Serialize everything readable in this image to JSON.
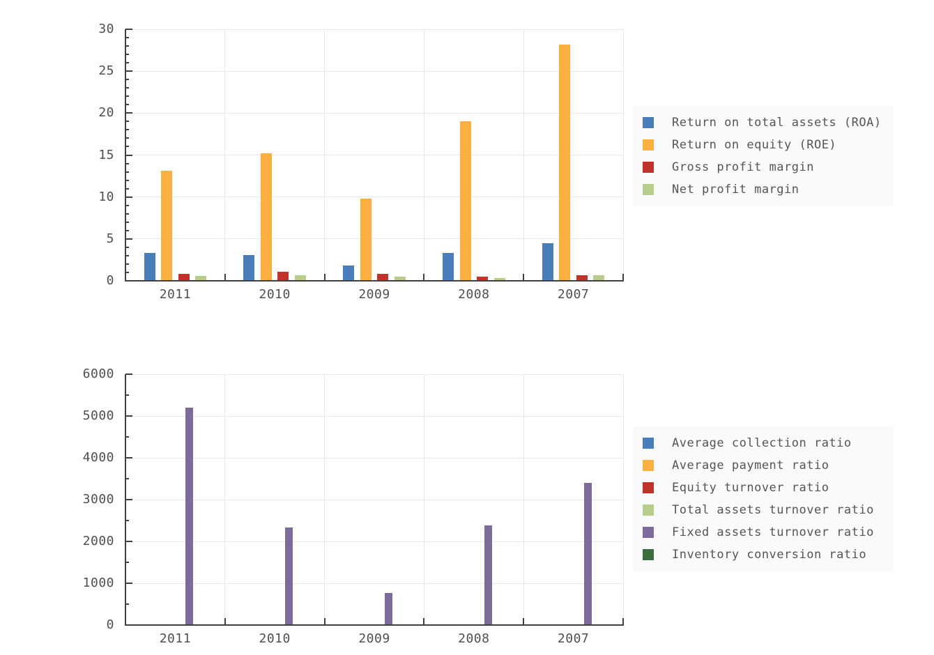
{
  "style": {
    "background": "#ffffff",
    "grid_color": "#e8e8e8",
    "axis_color": "#404040",
    "text_color": "#4f4f4f",
    "legend_bg": "#fafafa"
  },
  "chart_data": [
    {
      "id": "profitability-ratios",
      "type": "bar",
      "title": "",
      "categories": [
        "2011",
        "2010",
        "2009",
        "2008",
        "2007"
      ],
      "series": [
        {
          "name": "Return on total assets (ROA)",
          "color": "#4a7ebb",
          "values": [
            3.3,
            3.1,
            1.8,
            3.3,
            4.5
          ]
        },
        {
          "name": "Return on equity (ROE)",
          "color": "#fbb042",
          "values": [
            13.1,
            15.2,
            9.8,
            19.0,
            28.2
          ]
        },
        {
          "name": "Gross profit margin",
          "color": "#c1332a",
          "values": [
            0.85,
            1.1,
            0.8,
            0.5,
            0.7
          ]
        },
        {
          "name": "Net profit margin",
          "color": "#b8cc8c",
          "values": [
            0.6,
            0.65,
            0.5,
            0.35,
            0.65
          ]
        }
      ],
      "ylim": [
        0,
        30
      ],
      "y_major_step": 5,
      "y_minor_step": 1,
      "y_tick_labels": [
        "0",
        "5",
        "10",
        "15",
        "20",
        "25",
        "30"
      ],
      "grid": true,
      "legend_position": "right"
    },
    {
      "id": "turnover-ratios",
      "type": "bar",
      "title": "",
      "categories": [
        "2011",
        "2010",
        "2009",
        "2008",
        "2007"
      ],
      "series": [
        {
          "name": "Average collection ratio",
          "color": "#4a7ebb",
          "values": [
            0,
            0,
            0,
            0,
            0
          ]
        },
        {
          "name": "Average payment ratio",
          "color": "#fbb042",
          "values": [
            0,
            0,
            0,
            0,
            0
          ]
        },
        {
          "name": "Equity turnover ratio",
          "color": "#c1332a",
          "values": [
            0,
            0,
            0,
            0,
            0
          ]
        },
        {
          "name": "Total assets turnover ratio",
          "color": "#b8cc8c",
          "values": [
            0,
            0,
            0,
            0,
            0
          ]
        },
        {
          "name": "Fixed assets turnover ratio",
          "color": "#7d6b9c",
          "values": [
            5200,
            2330,
            770,
            2390,
            3400
          ]
        },
        {
          "name": "Inventory conversion ratio",
          "color": "#3e6d3d",
          "values": [
            0,
            0,
            0,
            0,
            0
          ]
        }
      ],
      "ylim": [
        0,
        6000
      ],
      "y_major_step": 1000,
      "y_minor_step": 500,
      "y_tick_labels": [
        "0",
        "1000",
        "2000",
        "3000",
        "4000",
        "5000",
        "6000"
      ],
      "grid": true,
      "legend_position": "right"
    }
  ]
}
